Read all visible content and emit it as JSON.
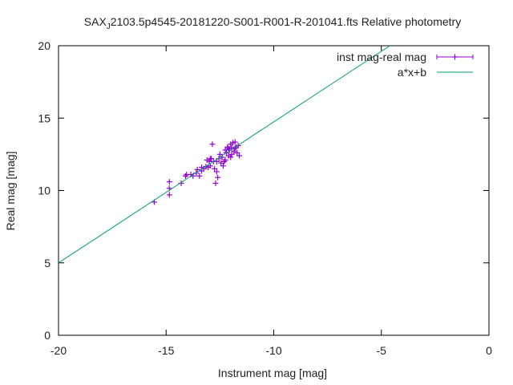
{
  "chart_data": {
    "type": "scatter",
    "title_prefix": "SAX",
    "title_sub": "J",
    "title_rest": "2103.5p4545-20181220-S001-R001-R-201041.fts Relative photometry",
    "xlabel": "Instrument mag [mag]",
    "ylabel": "Real mag [mag]",
    "xlim": [
      -20,
      0
    ],
    "ylim": [
      0,
      20
    ],
    "xticks": [
      -20,
      -15,
      -10,
      -5,
      0
    ],
    "yticks": [
      0,
      5,
      10,
      15,
      20
    ],
    "legend_position": "top-right",
    "grid": false,
    "series": [
      {
        "name": "inst mag-real mag",
        "kind": "points",
        "color": "#9400d3",
        "points": [
          [
            -15.55,
            9.2
          ],
          [
            -14.85,
            10.6
          ],
          [
            -14.85,
            10.15
          ],
          [
            -14.85,
            9.7
          ],
          [
            -14.3,
            10.5
          ],
          [
            -14.1,
            11.0
          ],
          [
            -14.05,
            11.1
          ],
          [
            -13.85,
            11.1
          ],
          [
            -13.75,
            11.0
          ],
          [
            -13.6,
            11.2
          ],
          [
            -13.55,
            11.45
          ],
          [
            -13.45,
            11.0
          ],
          [
            -13.35,
            11.35
          ],
          [
            -13.25,
            11.5
          ],
          [
            -13.15,
            11.65
          ],
          [
            -13.05,
            11.6
          ],
          [
            -13.0,
            12.0
          ],
          [
            -12.95,
            11.7
          ],
          [
            -12.9,
            12.2
          ],
          [
            -12.85,
            13.2
          ],
          [
            -12.8,
            12.0
          ],
          [
            -12.75,
            11.5
          ],
          [
            -12.7,
            10.5
          ],
          [
            -12.65,
            11.3
          ],
          [
            -12.6,
            10.9
          ],
          [
            -12.55,
            12.2
          ],
          [
            -12.5,
            12.5
          ],
          [
            -12.45,
            11.9
          ],
          [
            -12.4,
            12.3
          ],
          [
            -12.35,
            11.7
          ],
          [
            -12.3,
            12.0
          ],
          [
            -12.25,
            12.1
          ],
          [
            -12.2,
            12.6
          ],
          [
            -12.15,
            13.0
          ],
          [
            -12.1,
            12.4
          ],
          [
            -12.05,
            12.8
          ],
          [
            -12.0,
            13.2
          ],
          [
            -11.95,
            12.5
          ],
          [
            -11.9,
            13.3
          ],
          [
            -11.85,
            12.7
          ],
          [
            -11.8,
            12.9
          ],
          [
            -11.75,
            13.0
          ],
          [
            -11.7,
            12.6
          ],
          [
            -11.65,
            13.1
          ],
          [
            -11.6,
            12.4
          ],
          [
            -12.1,
            12.9
          ],
          [
            -11.95,
            12.95
          ],
          [
            -12.25,
            12.8
          ],
          [
            -13.1,
            12.1
          ],
          [
            -12.95,
            12.2
          ],
          [
            -13.35,
            11.6
          ],
          [
            -12.65,
            12.0
          ],
          [
            -12.0,
            12.3
          ],
          [
            -11.8,
            13.35
          ]
        ]
      },
      {
        "name": "a*x+b",
        "kind": "line",
        "color": "#009e73",
        "x": [
          -20,
          -4.6
        ],
        "y": [
          5.0,
          20.0
        ]
      }
    ]
  }
}
